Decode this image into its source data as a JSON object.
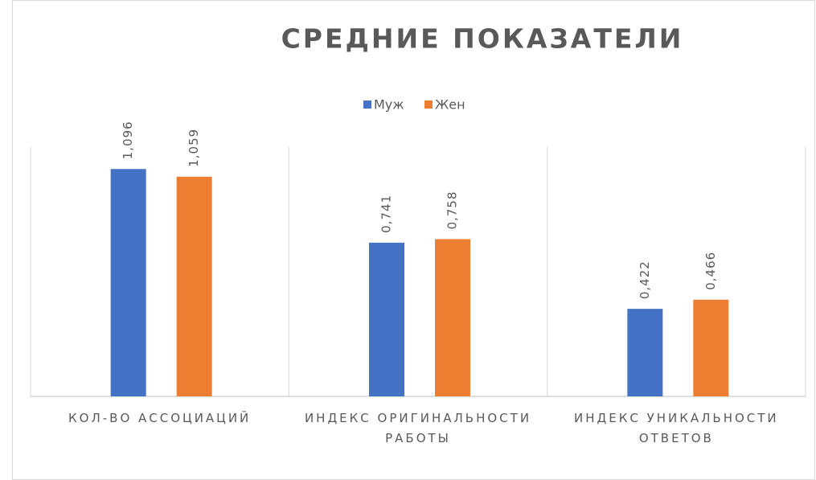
{
  "chart_data": {
    "type": "bar",
    "title": "СРЕДНИЕ  ПОКАЗАТЕЛИ",
    "categories": [
      "КОЛ-ВО АССОЦИАЦИЙ",
      "ИНДЕКС ОРИГИНАЛЬНОСТИ РАБОТЫ",
      "ИНДЕКС УНИКАЛЬНОСТИ ОТВЕТОВ"
    ],
    "series": [
      {
        "name": "Муж",
        "color": "#4472c4",
        "values": [
          1.096,
          0.741,
          0.422
        ],
        "value_labels": [
          "1,096",
          "0,741",
          "0,422"
        ]
      },
      {
        "name": "Жен",
        "color": "#ed7d31",
        "values": [
          1.059,
          0.758,
          0.466
        ],
        "value_labels": [
          "1,059",
          "0,758",
          "0,466"
        ]
      }
    ],
    "legend": "top",
    "grid": false
  }
}
